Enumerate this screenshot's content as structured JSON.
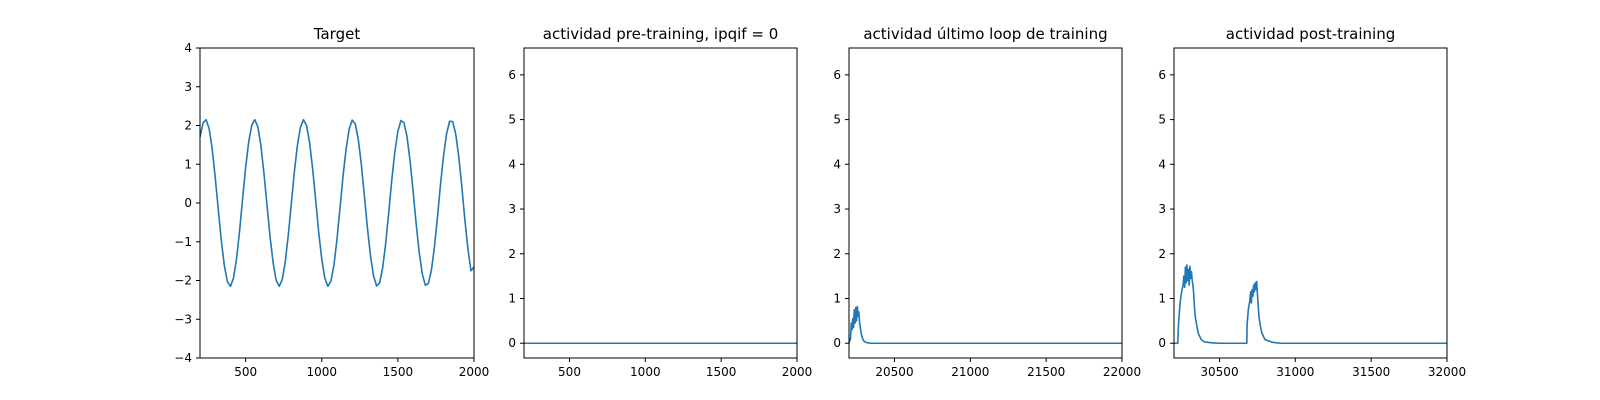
{
  "figure": {
    "background": "#ffffff",
    "line_color": "#1f77b4"
  },
  "chart_data": [
    {
      "type": "line",
      "title": "Target",
      "xlabel": "",
      "ylabel": "",
      "xlim": [
        200,
        2000
      ],
      "ylim": [
        -4,
        4
      ],
      "xticks": [
        500,
        1000,
        1500,
        2000
      ],
      "yticks": [
        -4,
        -3,
        -2,
        -1,
        0,
        1,
        2,
        3,
        4
      ],
      "grid": false,
      "series": [
        {
          "x": [
            200,
            220,
            240,
            260,
            280,
            300,
            320,
            340,
            360,
            380,
            400,
            420,
            440,
            460,
            480,
            500,
            520,
            540,
            560,
            580,
            600,
            620,
            640,
            660,
            680,
            700,
            720,
            740,
            760,
            780,
            800,
            820,
            840,
            860,
            880,
            900,
            920,
            940,
            960,
            980,
            1000,
            1020,
            1040,
            1060,
            1080,
            1100,
            1120,
            1140,
            1160,
            1180,
            1200,
            1220,
            1240,
            1260,
            1280,
            1300,
            1320,
            1340,
            1360,
            1380,
            1400,
            1420,
            1440,
            1460,
            1480,
            1500,
            1520,
            1540,
            1560,
            1580,
            1600,
            1620,
            1640,
            1660,
            1680,
            1700,
            1720,
            1740,
            1760,
            1780,
            1800,
            1820,
            1840,
            1860,
            1880,
            1900,
            1920,
            1940,
            1960,
            1980,
            2000
          ],
          "y": [
            1.7,
            2.07,
            2.15,
            1.92,
            1.4,
            0.66,
            -0.17,
            -0.97,
            -1.62,
            -2.03,
            -2.15,
            -1.94,
            -1.44,
            -0.72,
            0.11,
            0.92,
            1.58,
            2.01,
            2.15,
            1.97,
            1.48,
            0.77,
            -0.05,
            -0.86,
            -1.53,
            -1.99,
            -2.15,
            -1.98,
            -1.52,
            -0.83,
            -0.01,
            0.81,
            1.49,
            1.96,
            2.15,
            2.0,
            1.56,
            0.88,
            0.07,
            -0.76,
            -1.45,
            -1.94,
            -2.15,
            -2.02,
            -1.6,
            -0.93,
            -0.12,
            0.71,
            1.4,
            1.91,
            2.14,
            2.04,
            1.64,
            0.99,
            0.18,
            -0.65,
            -1.36,
            -1.88,
            -2.14,
            -2.06,
            -1.67,
            -1.04,
            -0.24,
            0.6,
            1.32,
            1.85,
            2.13,
            2.07,
            1.71,
            1.09,
            0.3,
            -0.54,
            -1.27,
            -1.82,
            -2.12,
            -2.08,
            -1.74,
            -1.14,
            -0.36,
            0.48,
            1.22,
            1.79,
            2.11,
            2.1,
            1.78,
            1.19,
            0.42,
            -0.43,
            -1.18,
            -1.75,
            -1.65
          ]
        }
      ]
    },
    {
      "type": "line",
      "title": "actividad pre-training, ipqif = 0",
      "xlabel": "",
      "ylabel": "",
      "xlim": [
        200,
        2000
      ],
      "ylim": [
        -0.33,
        6.6
      ],
      "xticks": [
        500,
        1000,
        1500,
        2000
      ],
      "yticks": [
        0,
        1,
        2,
        3,
        4,
        5,
        6
      ],
      "grid": false,
      "series": [
        {
          "x": [
            200,
            2000
          ],
          "y": [
            0.0,
            0.0
          ]
        }
      ]
    },
    {
      "type": "line",
      "title": "actividad último loop de training",
      "xlabel": "",
      "ylabel": "",
      "xlim": [
        20200,
        22000
      ],
      "ylim": [
        -0.33,
        6.6
      ],
      "xticks": [
        20500,
        21000,
        21500,
        22000
      ],
      "yticks": [
        0,
        1,
        2,
        3,
        4,
        5,
        6
      ],
      "grid": false,
      "series": [
        {
          "x": [
            20200,
            20210,
            20215,
            20220,
            20225,
            20230,
            20235,
            20240,
            20245,
            20250,
            20255,
            20260,
            20265,
            20270,
            20275,
            20280,
            20290,
            20300,
            20320,
            20350,
            20400,
            22000
          ],
          "y": [
            0.0,
            0.1,
            0.45,
            0.3,
            0.55,
            0.35,
            0.75,
            0.45,
            0.8,
            0.5,
            0.82,
            0.6,
            0.7,
            0.45,
            0.35,
            0.22,
            0.1,
            0.04,
            0.01,
            0.0,
            0.0,
            0.0
          ]
        }
      ]
    },
    {
      "type": "line",
      "title": "actividad post-training",
      "xlabel": "",
      "ylabel": "",
      "xlim": [
        30200,
        32000
      ],
      "ylim": [
        -0.33,
        6.6
      ],
      "xticks": [
        30500,
        31000,
        31500,
        32000
      ],
      "yticks": [
        0,
        1,
        2,
        3,
        4,
        5,
        6
      ],
      "grid": false,
      "series": [
        {
          "x": [
            30200,
            30225,
            30230,
            30240,
            30250,
            30260,
            30265,
            30270,
            30275,
            30280,
            30285,
            30290,
            30295,
            30300,
            30305,
            30310,
            30315,
            30320,
            30325,
            30330,
            30335,
            30340,
            30350,
            30360,
            30380,
            30400,
            30450,
            30500,
            30600,
            30680,
            30682,
            30690,
            30700,
            30705,
            30710,
            30715,
            30720,
            30725,
            30730,
            30735,
            30740,
            30745,
            30750,
            30755,
            30760,
            30770,
            30780,
            30800,
            30850,
            30900,
            31000,
            32000
          ],
          "y": [
            0.0,
            0.0,
            0.45,
            0.9,
            1.15,
            1.3,
            1.5,
            1.25,
            1.7,
            1.35,
            1.75,
            1.4,
            1.65,
            1.3,
            1.72,
            1.45,
            1.6,
            1.4,
            1.3,
            1.1,
            0.8,
            0.6,
            0.4,
            0.22,
            0.08,
            0.03,
            0.01,
            0.0,
            0.0,
            0.0,
            0.42,
            0.75,
            0.95,
            1.15,
            0.9,
            1.2,
            1.05,
            1.3,
            1.15,
            1.35,
            1.2,
            1.38,
            1.1,
            0.85,
            0.6,
            0.38,
            0.22,
            0.08,
            0.02,
            0.0,
            0.0,
            0.0
          ]
        }
      ]
    }
  ]
}
